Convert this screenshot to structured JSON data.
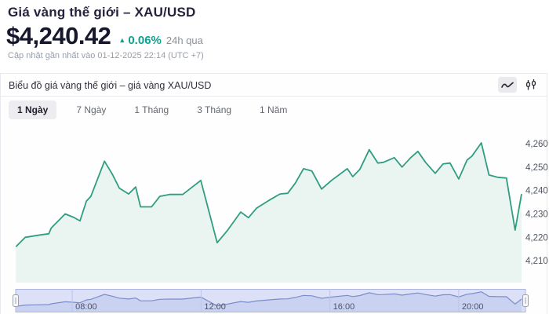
{
  "header": {
    "title": "Giá vàng thế giới – XAU/USD",
    "price": "$4,240.42",
    "change_arrow": "▲",
    "change_percent": "0.06%",
    "change_period": "24h qua",
    "updated": "Cập nhật gần nhất vào 01-12-2025 22:14 (UTC +7)"
  },
  "chart_panel": {
    "title": "Biểu đồ giá vàng thế giới – giá vàng XAU/USD",
    "tools": [
      {
        "icon": "line-chart-icon",
        "active": true
      },
      {
        "icon": "candlestick-chart-icon",
        "active": false
      }
    ],
    "range_tabs": [
      {
        "label": "1 Ngày",
        "active": true
      },
      {
        "label": "7 Ngày",
        "active": false
      },
      {
        "label": "1 Tháng",
        "active": false
      },
      {
        "label": "3 Tháng",
        "active": false
      },
      {
        "label": "1 Năm",
        "active": false
      }
    ]
  },
  "colors": {
    "accent_teal": "#0aa390",
    "price_text": "#17172e",
    "line": "#2f9d80",
    "area_fill": "#eaf5f1",
    "axis_label": "#4f5560",
    "navigator_bg": "#dce1f8",
    "navigator_area": "#c9d2f1",
    "navigator_line": "#7c8cc8",
    "navigator_outline": "#aab4dd",
    "navigator_grid": "#bcc4e8",
    "handle_fill": "#f7f7f9",
    "handle_stroke": "#9aa0ad"
  },
  "chart_data": {
    "type": "area",
    "title": "Giá vàng XAU/USD – 1 Ngày",
    "xlabel": "",
    "ylabel": "",
    "x_unit": "hour_of_day",
    "x_range": [
      6.0,
      21.95
    ],
    "ylim": [
      4199,
      4270.7
    ],
    "grid": false,
    "legend_position": "none",
    "y_ticks": [
      {
        "value": 4260,
        "label": "4,260"
      },
      {
        "value": 4250,
        "label": "4,250"
      },
      {
        "value": 4240,
        "label": "4,240"
      },
      {
        "value": 4230,
        "label": "4,230"
      },
      {
        "value": 4220,
        "label": "4,220"
      },
      {
        "value": 4210,
        "label": "4,210"
      }
    ],
    "x_ticks": [
      {
        "value": 8,
        "label": "08:00"
      },
      {
        "value": 12,
        "label": "12:00"
      },
      {
        "value": 16,
        "label": "16:00"
      },
      {
        "value": 20,
        "label": "20:00"
      }
    ],
    "series": [
      {
        "name": "XAU/USD",
        "points": [
          [
            6.25,
            4216
          ],
          [
            6.54,
            4220
          ],
          [
            7.0,
            4221
          ],
          [
            7.27,
            4221.5
          ],
          [
            7.35,
            4224
          ],
          [
            7.78,
            4230
          ],
          [
            8.05,
            4228.5
          ],
          [
            8.24,
            4227
          ],
          [
            8.44,
            4235.5
          ],
          [
            8.58,
            4237.5
          ],
          [
            9.0,
            4252.5
          ],
          [
            9.24,
            4247
          ],
          [
            9.46,
            4241
          ],
          [
            9.75,
            4238.5
          ],
          [
            9.97,
            4241.5
          ],
          [
            10.12,
            4233
          ],
          [
            10.46,
            4233
          ],
          [
            10.72,
            4237.5
          ],
          [
            11.02,
            4238.3
          ],
          [
            11.43,
            4238.3
          ],
          [
            11.99,
            4244.3
          ],
          [
            12.5,
            4217.7
          ],
          [
            12.82,
            4223
          ],
          [
            13.23,
            4230.8
          ],
          [
            13.47,
            4228.4
          ],
          [
            13.72,
            4232.4
          ],
          [
            14.11,
            4235.8
          ],
          [
            14.45,
            4238.5
          ],
          [
            14.69,
            4238.8
          ],
          [
            14.93,
            4243.2
          ],
          [
            15.18,
            4249.3
          ],
          [
            15.44,
            4248.3
          ],
          [
            15.74,
            4240.6
          ],
          [
            16.05,
            4244.3
          ],
          [
            16.54,
            4249.3
          ],
          [
            16.71,
            4245.9
          ],
          [
            16.93,
            4249
          ],
          [
            17.22,
            4257.4
          ],
          [
            17.49,
            4251.7
          ],
          [
            17.66,
            4252
          ],
          [
            18.0,
            4254
          ],
          [
            18.24,
            4250
          ],
          [
            18.51,
            4254
          ],
          [
            18.73,
            4256.7
          ],
          [
            18.97,
            4252
          ],
          [
            19.27,
            4247.3
          ],
          [
            19.51,
            4251.3
          ],
          [
            19.73,
            4251.7
          ],
          [
            20.0,
            4244.9
          ],
          [
            20.26,
            4253
          ],
          [
            20.41,
            4254.7
          ],
          [
            20.7,
            4260.3
          ],
          [
            20.94,
            4246.6
          ],
          [
            21.21,
            4245.6
          ],
          [
            21.48,
            4245.3
          ],
          [
            21.75,
            4223.1
          ],
          [
            21.95,
            4238.5
          ]
        ]
      }
    ]
  }
}
